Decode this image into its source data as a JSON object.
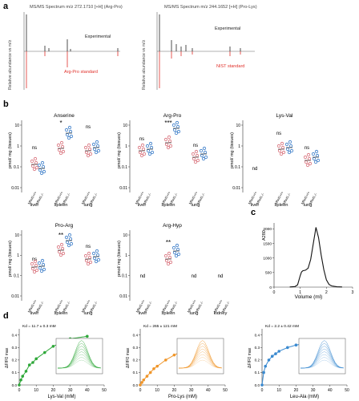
{
  "panel_labels": {
    "a": "a",
    "b": "b",
    "c": "c",
    "d": "d"
  },
  "panel_a": {
    "left_title": "MS/MS Spectrum m/z 272.1710 [+H] (Arg-Pro)",
    "right_title": "MS/MS Spectrum m/z 244.1652 [+H] (Pro-Lys)",
    "ylabel": "Relative abundance vs m/z",
    "left_experimental": "Experimental",
    "left_standard": "Arg-Pro standard",
    "right_experimental": "Experimental",
    "right_standard": "NIST standard",
    "colors": {
      "experimental": "#222222",
      "standard": "#e0302a"
    }
  },
  "panel_b": {
    "ylabel": "pmol/ mg (tissues)",
    "tissues": {
      "liver": "liver",
      "spleen": "spleen",
      "lung": "lung",
      "kidney": "kidney"
    },
    "genotypes": {
      "wt": "Mfsd1+/+",
      "ko": "Mfsd1-/-"
    },
    "nd": "nd",
    "colors": {
      "wt": "#d8707a",
      "ko": "#3a7cc8"
    },
    "subplots": [
      {
        "title": "Anserine",
        "sig": [
          "ns",
          "*",
          "ns"
        ]
      },
      {
        "title": "Arg-Pro",
        "sig": [
          "ns",
          "***",
          "ns"
        ]
      },
      {
        "title": "Lys-Val",
        "sig": [
          "",
          "ns",
          "ns"
        ]
      },
      {
        "title": "Pro-Arg",
        "sig": [
          "ns",
          "**",
          "ns"
        ]
      },
      {
        "title": "Arg-Hyp",
        "sig": [
          "",
          "**",
          ""
        ]
      }
    ],
    "ytick_labels": [
      "10",
      "1",
      "0.1",
      "0.01"
    ]
  },
  "chart_data": [
    {
      "type": "line",
      "panel": "c",
      "xlabel": "Volume (ml)",
      "ylabel": "A280",
      "x_ticks": [
        "0",
        "1",
        "2",
        "3"
      ],
      "y_ticks": [
        "0",
        "500",
        "1000",
        "1500",
        "2000"
      ],
      "x": [
        0.6,
        0.8,
        0.9,
        1.0,
        1.05,
        1.1,
        1.2,
        1.3,
        1.4,
        1.5,
        1.6,
        1.7,
        1.8,
        1.9,
        2.0,
        2.1,
        2.2,
        2.4,
        2.6
      ],
      "y": [
        5,
        20,
        80,
        400,
        520,
        560,
        580,
        650,
        950,
        1500,
        2050,
        1700,
        1100,
        600,
        250,
        90,
        40,
        10,
        5
      ],
      "xlim": [
        0,
        3
      ],
      "ylim": [
        0,
        2200
      ]
    },
    {
      "type": "scatter",
      "panel": "d1",
      "annotation": "Kd = 11.7 ± 0.3 mM",
      "xlabel": "Lys-Val (mM)",
      "ylabel": "ΔF/F0 max",
      "x_ticks": [
        "0",
        "10",
        "20",
        "30",
        "40",
        "50"
      ],
      "y_ticks": [
        "0.0",
        "0.1",
        "0.2",
        "0.3",
        "0.4"
      ],
      "x": [
        0,
        1,
        2,
        4,
        6,
        8,
        10,
        15,
        20,
        25,
        30,
        40
      ],
      "y": [
        0.0,
        0.04,
        0.07,
        0.11,
        0.16,
        0.18,
        0.21,
        0.26,
        0.31,
        0.34,
        0.37,
        0.39
      ],
      "xlim": [
        0,
        50
      ],
      "ylim": [
        0,
        0.45
      ],
      "color": "#2fa83a"
    },
    {
      "type": "scatter",
      "panel": "d2",
      "annotation": "Kd = 265 ± 121 mM",
      "xlabel": "Pro-Lys (mM)",
      "ylabel": "ΔF/F0 max",
      "x_ticks": [
        "0",
        "10",
        "20",
        "30",
        "40",
        "50"
      ],
      "y_ticks": [
        "0.0",
        "0.1",
        "0.2",
        "0.3",
        "0.4"
      ],
      "x": [
        0,
        1,
        2,
        4,
        6,
        8,
        10,
        15,
        20,
        25,
        30,
        40
      ],
      "y": [
        0.0,
        0.02,
        0.04,
        0.07,
        0.1,
        0.13,
        0.15,
        0.2,
        0.24,
        0.27,
        0.31,
        0.36
      ],
      "xlim": [
        0,
        50
      ],
      "ylim": [
        0,
        0.45
      ],
      "color": "#f0962a"
    },
    {
      "type": "scatter",
      "panel": "d3",
      "annotation": "Kd = 2.2 ± 0.42 mM",
      "xlabel": "Leu-Ala (mM)",
      "ylabel": "ΔF/F0 max",
      "x_ticks": [
        "0",
        "10",
        "20",
        "30",
        "40",
        "50"
      ],
      "y_ticks": [
        "0.0",
        "0.1",
        "0.2",
        "0.3",
        "0.4"
      ],
      "x": [
        0,
        1,
        2,
        4,
        6,
        8,
        10,
        15,
        20,
        25,
        30,
        40
      ],
      "y": [
        0.0,
        0.1,
        0.15,
        0.2,
        0.23,
        0.25,
        0.27,
        0.3,
        0.32,
        0.33,
        0.34,
        0.36
      ],
      "xlim": [
        0,
        50
      ],
      "ylim": [
        0,
        0.45
      ],
      "color": "#3a8ad0"
    }
  ]
}
